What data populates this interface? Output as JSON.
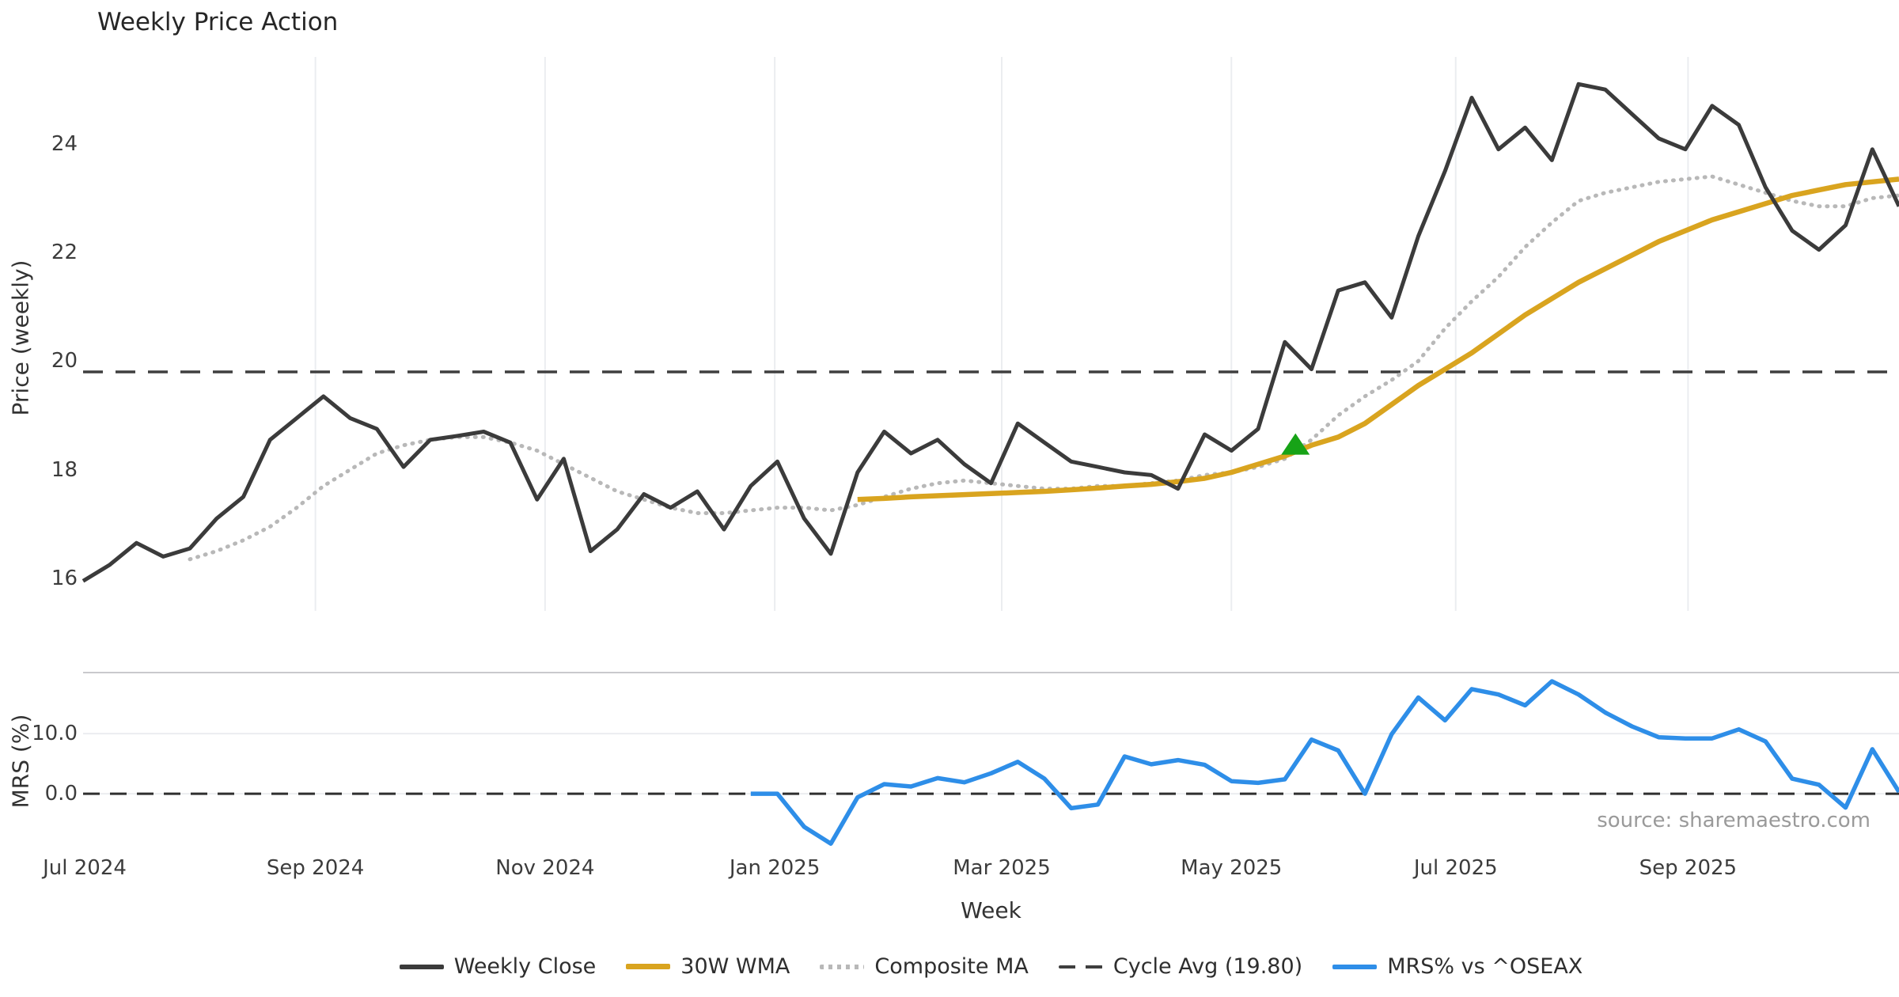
{
  "title": "Weekly Price Action",
  "source_note": "source: sharemaestro.com",
  "axes": {
    "x_label": "Week",
    "price_axis_label": "Price (weekly)",
    "mrs_axis_label": "MRS (%)"
  },
  "legend": [
    {
      "label": "Weekly Close",
      "color": "#3b3b3b",
      "swatch": "solid"
    },
    {
      "label": "30W WMA",
      "color": "#d9a41f",
      "swatch": "solid"
    },
    {
      "label": "Composite MA",
      "color": "#b8b8b8",
      "swatch": "dotted"
    },
    {
      "label": "Cycle Avg (19.80)",
      "color": "#3f3f3f",
      "swatch": "dashed"
    },
    {
      "label": "MRS% vs ^OSEAX",
      "color": "#2e8ee8",
      "swatch": "solid"
    }
  ],
  "chart_data": {
    "type": "line",
    "x_unit": "weekly, Jul 2024 through Nov 2025",
    "x_tick_labels": [
      "Jul 2024",
      "Sep 2024",
      "Nov 2024",
      "Jan 2025",
      "Mar 2025",
      "May 2025",
      "Jul 2025",
      "Sep 2025"
    ],
    "x_tick_weeks": [
      0.06,
      8.7,
      17.3,
      25.9,
      34.4,
      43.0,
      51.4,
      60.1
    ],
    "grid": "vertical-light-gridlines-top-panel-only",
    "legend_position": "bottom-center",
    "panels": [
      {
        "name": "price",
        "ylabel": "Price (weekly)",
        "ylim": [
          15.4,
          25.6
        ],
        "yticks": [
          24,
          22,
          20,
          18,
          16
        ],
        "ytick_labels": [
          "24",
          "22",
          "20",
          "18",
          "16"
        ],
        "reference": {
          "name": "Cycle Avg",
          "value": 19.8
        },
        "marker": {
          "shape": "triangle-up",
          "color": "#17a317",
          "week": 45.4,
          "price": 18.45
        },
        "series": [
          {
            "name": "Weekly Close",
            "color": "#3b3b3b",
            "style": "solid",
            "start_week": 0,
            "values": [
              15.95,
              16.25,
              16.65,
              16.4,
              16.55,
              17.1,
              17.5,
              18.55,
              18.95,
              19.35,
              18.95,
              18.75,
              18.05,
              18.55,
              18.62,
              18.7,
              18.5,
              17.45,
              18.2,
              16.5,
              16.9,
              17.55,
              17.3,
              17.6,
              16.9,
              17.7,
              18.15,
              17.1,
              16.45,
              17.95,
              18.7,
              18.3,
              18.55,
              18.1,
              17.75,
              18.85,
              18.5,
              18.15,
              18.05,
              17.95,
              17.9,
              17.65,
              18.65,
              18.35,
              18.75,
              20.35,
              19.85,
              21.3,
              21.45,
              20.8,
              22.3,
              23.5,
              24.85,
              23.9,
              24.3,
              23.7,
              25.1,
              25.0,
              24.55,
              24.1,
              23.9,
              24.7,
              24.35,
              23.2,
              22.4,
              22.05,
              22.5,
              23.9,
              22.85
            ]
          },
          {
            "name": "Composite MA",
            "color": "#b8b8b8",
            "style": "dotted",
            "start_week": 4,
            "values": [
              16.35,
              16.5,
              16.7,
              16.95,
              17.3,
              17.7,
              18.0,
              18.3,
              18.45,
              18.55,
              18.6,
              18.6,
              18.5,
              18.35,
              18.1,
              17.85,
              17.6,
              17.45,
              17.3,
              17.2,
              17.2,
              17.25,
              17.3,
              17.3,
              17.25,
              17.35,
              17.5,
              17.65,
              17.75,
              17.8,
              17.75,
              17.7,
              17.65,
              17.65,
              17.7,
              17.7,
              17.75,
              17.8,
              17.9,
              17.95,
              18.05,
              18.2,
              18.55,
              19.0,
              19.35,
              19.65,
              20.0,
              20.6,
              21.1,
              21.55,
              22.1,
              22.55,
              22.95,
              23.1,
              23.2,
              23.3,
              23.35,
              23.4,
              23.25,
              23.1,
              22.95,
              22.85,
              22.85,
              23.0,
              23.05
            ]
          },
          {
            "name": "30W WMA",
            "color": "#d9a41f",
            "style": "solid",
            "start_week": 29,
            "values": [
              17.45,
              17.47,
              17.5,
              17.52,
              17.54,
              17.56,
              17.58,
              17.6,
              17.63,
              17.66,
              17.7,
              17.73,
              17.78,
              17.84,
              17.95,
              18.1,
              18.25,
              18.45,
              18.6,
              18.85,
              19.2,
              19.55,
              19.85,
              20.15,
              20.5,
              20.85,
              21.15,
              21.45,
              21.7,
              21.95,
              22.2,
              22.4,
              22.6,
              22.75,
              22.9,
              23.05,
              23.15,
              23.25,
              23.3,
              23.35
            ]
          }
        ]
      },
      {
        "name": "mrs",
        "ylabel": "MRS (%)",
        "ylim": [
          -8.8,
          20.15
        ],
        "yticks": [
          10,
          0
        ],
        "ytick_labels": [
          "10.0",
          "0.0"
        ],
        "reference": {
          "name": "Zero line",
          "value": 0
        },
        "series": [
          {
            "name": "MRS% vs ^OSEAX",
            "color": "#2e8ee8",
            "style": "solid",
            "start_week": 25,
            "values": [
              0.0,
              0.0,
              -5.5,
              -8.3,
              -0.6,
              1.6,
              1.2,
              2.6,
              1.9,
              3.4,
              5.3,
              2.5,
              -2.4,
              -1.8,
              6.2,
              4.9,
              5.6,
              4.8,
              2.1,
              1.8,
              2.4,
              9.0,
              7.2,
              0.0,
              9.9,
              16.0,
              12.2,
              17.4,
              16.5,
              14.7,
              18.7,
              16.5,
              13.5,
              11.2,
              9.4,
              9.2,
              9.2,
              10.7,
              8.7,
              2.5,
              1.5,
              -2.3,
              7.4,
              0.3
            ]
          }
        ]
      }
    ]
  }
}
